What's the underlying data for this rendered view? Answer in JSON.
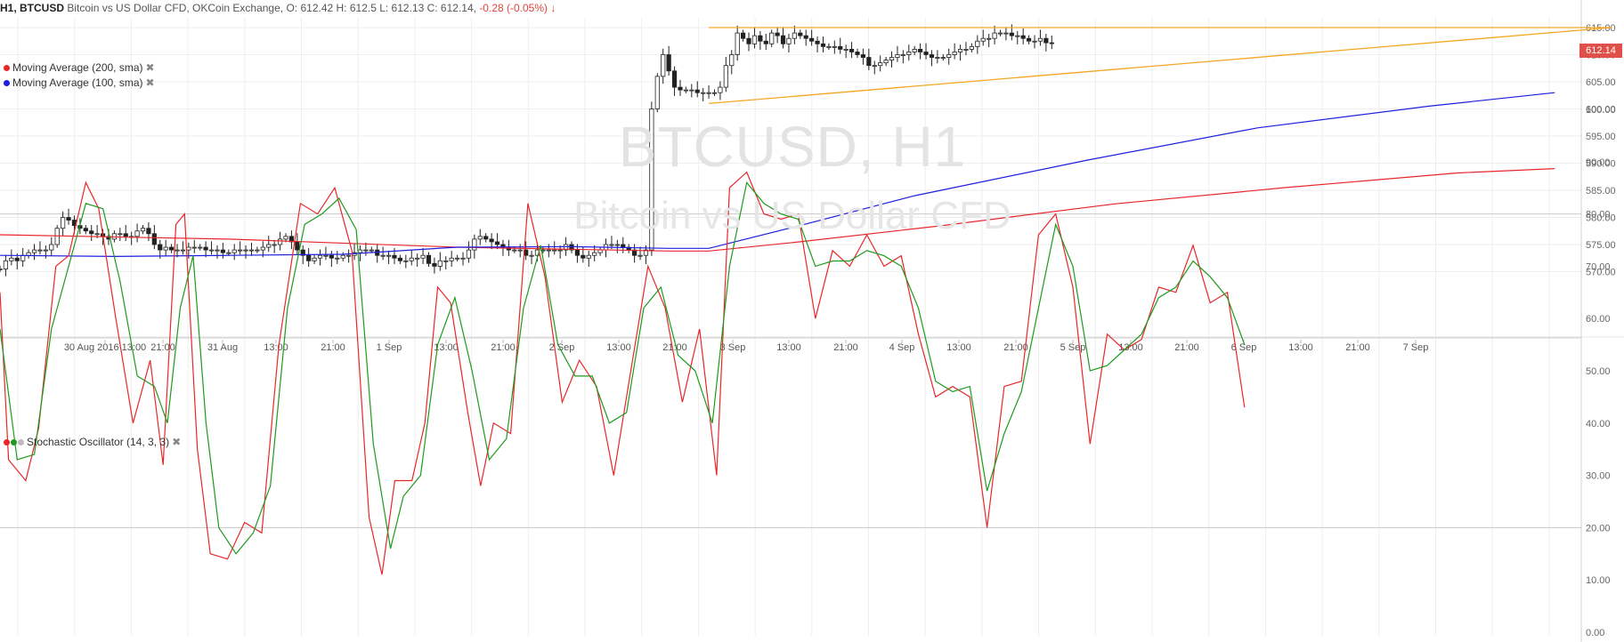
{
  "header": {
    "symbol": "H1, BTCUSD",
    "description": "Bitcoin vs US Dollar CFD, OKCoin Exchange,",
    "ohlc": "O: 612.42 H: 612.5 L: 612.13 C: 612.14,",
    "change": "-0.28 (-0.05%)",
    "change_arrow": "↓"
  },
  "watermark": {
    "line1": "BTCUSD, H1",
    "line2": "Bitcoin vs US Dollar CFD"
  },
  "price_tag": "612.14",
  "legend": {
    "ma200": {
      "label": "Moving Average (200, sma)",
      "color": "#e8272b",
      "close": "✖"
    },
    "ma100": {
      "label": "Moving Average (100, sma)",
      "color": "#1e1ee0",
      "close": "✖"
    },
    "stoch": {
      "label": "Stochastic Oscillator (14, 3, 3)",
      "close": "✖",
      "dot_colors": [
        "#e8272b",
        "#1e9a1e",
        "#bbbbbb"
      ]
    }
  },
  "chart_data": [
    {
      "type": "candlestick",
      "y_ticks": [
        "615.00",
        "610.00",
        "605.00",
        "600.00",
        "595.00",
        "590.00",
        "585.00",
        "580.00",
        "575.00",
        "570.00"
      ],
      "x_ticks": [
        "30 Aug 2016 13:00",
        "21:00",
        "31 Aug",
        "13:00",
        "21:00",
        "1 Sep",
        "13:00",
        "21:00",
        "2 Sep",
        "13:00",
        "21:00",
        "3 Sep",
        "13:00",
        "21:00",
        "4 Sep",
        "13:00",
        "21:00",
        "5 Sep",
        "13:00",
        "21:00",
        "6 Sep",
        "13:00",
        "21:00",
        "7 Sep"
      ],
      "ylim": [
        566,
        617
      ],
      "close_prices": [
        570.5,
        572,
        572.5,
        572,
        573,
        573.5,
        574,
        574,
        574,
        575,
        578,
        580,
        579.5,
        578.5,
        578,
        577.5,
        577,
        577,
        576.5,
        576,
        577,
        577,
        576.5,
        576.5,
        577.5,
        578,
        577,
        575,
        574,
        574.5,
        574,
        574,
        574,
        574.5,
        574.5,
        574.5,
        574,
        574,
        574,
        573.5,
        573.5,
        574,
        574,
        574,
        574,
        574,
        574.5,
        575,
        575,
        576,
        576.5,
        575.5,
        574,
        573,
        572,
        572.5,
        573,
        573,
        572.5,
        572.5,
        573,
        573,
        573.5,
        574,
        574,
        574,
        573,
        573,
        573,
        572.5,
        572,
        572,
        572.5,
        572.5,
        573,
        571.5,
        571,
        572,
        572,
        572.5,
        572.5,
        572.5,
        574,
        576,
        576.5,
        576,
        575.5,
        575,
        574.5,
        574,
        574,
        574,
        573,
        573,
        574,
        574,
        574,
        574,
        574,
        575,
        574,
        573,
        572.5,
        573,
        573.5,
        574,
        575,
        575,
        575,
        574.5,
        574,
        573,
        573,
        574,
        600,
        606,
        610,
        607,
        604,
        603.5,
        603.5,
        603.5,
        603,
        603,
        603,
        603,
        604,
        608,
        610,
        614,
        613,
        612,
        613.5,
        612.5,
        612,
        614,
        613.5,
        612,
        613,
        614,
        613.5,
        613,
        612.5,
        612,
        611.5,
        611.5,
        611.5,
        611,
        611,
        610.5,
        610,
        609.5,
        608,
        608,
        608.5,
        609,
        609.5,
        610,
        610,
        610.5,
        611,
        610.5,
        610,
        609.5,
        609.5,
        609.5,
        610,
        610.5,
        611,
        611,
        611.5,
        612.5,
        613,
        613,
        614,
        614,
        614,
        613.5,
        613.5,
        613,
        612.5,
        612.5,
        613,
        612.2,
        612.14
      ],
      "series": [
        {
          "name": "Moving Average (200, sma)",
          "color": "#e8272b",
          "points": [
            [
              0,
              576.8
            ],
            [
              40,
              576.0
            ],
            [
              80,
              574.5
            ],
            [
              117,
              573.8
            ],
            [
              124,
              573.8
            ],
            [
              140,
              575.5
            ],
            [
              165,
              578.5
            ],
            [
              195,
              582.5
            ],
            [
              225,
              585.5
            ],
            [
              255,
              588.2
            ],
            [
              272,
              589.0
            ]
          ]
        },
        {
          "name": "Moving Average (100, sma)",
          "color": "#1e1ee0",
          "points": [
            [
              0,
              573.0
            ],
            [
              20,
              572.8
            ],
            [
              40,
              573.0
            ],
            [
              60,
              573.2
            ],
            [
              80,
              574.5
            ],
            [
              100,
              574.6
            ],
            [
              117,
              574.3
            ],
            [
              124,
              574.3
            ],
            [
              140,
              578.5
            ],
            [
              160,
              584.0
            ],
            [
              190,
              590.5
            ],
            [
              220,
              596.5
            ],
            [
              250,
              600.5
            ],
            [
              272,
              603.0
            ]
          ]
        },
        {
          "name": "Resistance",
          "color": "#f5a623",
          "points": [
            [
              124,
              615.0
            ],
            [
              282,
              615.0
            ]
          ]
        },
        {
          "name": "Support",
          "color": "#f5a623",
          "points": [
            [
              124,
              601.0
            ],
            [
              282,
              615.0
            ]
          ]
        }
      ]
    },
    {
      "type": "line",
      "y_ticks": [
        "100.00",
        "90.00",
        "80.00",
        "70.00",
        "60.00",
        "50.00",
        "40.00",
        "30.00",
        "20.00",
        "10.00",
        "0.00"
      ],
      "ylim": [
        0,
        100
      ],
      "reference_lines": [
        80,
        20
      ],
      "series": [
        {
          "name": "%K",
          "color": "#e8272b",
          "points": [
            [
              0,
              65
            ],
            [
              2,
              33
            ],
            [
              6,
              29
            ],
            [
              9,
              39
            ],
            [
              13,
              70
            ],
            [
              16,
              72
            ],
            [
              20,
              86
            ],
            [
              23,
              81
            ],
            [
              27,
              60
            ],
            [
              31,
              40
            ],
            [
              35,
              52
            ],
            [
              38,
              32
            ],
            [
              41,
              78
            ],
            [
              43,
              80
            ],
            [
              46,
              35
            ],
            [
              49,
              15
            ],
            [
              53,
              14
            ],
            [
              57,
              21
            ],
            [
              61,
              19
            ],
            [
              65,
              55
            ],
            [
              70,
              82
            ],
            [
              74,
              80
            ],
            [
              78,
              85
            ],
            [
              82,
              73
            ],
            [
              86,
              22
            ],
            [
              89,
              11
            ],
            [
              92,
              29
            ],
            [
              96,
              29
            ],
            [
              99,
              40
            ],
            [
              102,
              66
            ],
            [
              105,
              63
            ],
            [
              109,
              42
            ],
            [
              112,
              28
            ],
            [
              115,
              40
            ],
            [
              119,
              38
            ],
            [
              123,
              82
            ],
            [
              127,
              68
            ],
            [
              131,
              44
            ],
            [
              135,
              52
            ],
            [
              139,
              47
            ],
            [
              143,
              30
            ],
            [
              147,
              50
            ],
            [
              151,
              70
            ],
            [
              155,
              62
            ],
            [
              159,
              44
            ],
            [
              163,
              58
            ],
            [
              167,
              30
            ],
            [
              170,
              85
            ],
            [
              174,
              88
            ],
            [
              178,
              80
            ],
            [
              182,
              79
            ],
            [
              186,
              80
            ],
            [
              190,
              60
            ],
            [
              194,
              73
            ],
            [
              198,
              70
            ],
            [
              202,
              76
            ],
            [
              206,
              70
            ],
            [
              210,
              72
            ],
            [
              214,
              57
            ],
            [
              218,
              45
            ],
            [
              222,
              47
            ],
            [
              226,
              45
            ],
            [
              230,
              20
            ],
            [
              234,
              47
            ],
            [
              238,
              48
            ],
            [
              242,
              76
            ],
            [
              246,
              80
            ],
            [
              250,
              66
            ],
            [
              254,
              36
            ],
            [
              258,
              57
            ],
            [
              262,
              54
            ],
            [
              266,
              56
            ],
            [
              270,
              66
            ],
            [
              274,
              65
            ],
            [
              278,
              74
            ],
            [
              282,
              63
            ],
            [
              286,
              65
            ],
            [
              290,
              43
            ]
          ]
        },
        {
          "name": "%D",
          "color": "#1e9a1e",
          "points": [
            [
              0,
              58
            ],
            [
              4,
              33
            ],
            [
              8,
              34
            ],
            [
              12,
              58
            ],
            [
              16,
              70
            ],
            [
              20,
              82
            ],
            [
              24,
              81
            ],
            [
              28,
              67
            ],
            [
              32,
              49
            ],
            [
              36,
              47
            ],
            [
              39,
              40
            ],
            [
              42,
              62
            ],
            [
              45,
              72
            ],
            [
              48,
              40
            ],
            [
              51,
              20
            ],
            [
              55,
              15
            ],
            [
              59,
              19
            ],
            [
              63,
              28
            ],
            [
              67,
              62
            ],
            [
              71,
              78
            ],
            [
              75,
              80
            ],
            [
              79,
              83
            ],
            [
              83,
              77
            ],
            [
              87,
              36
            ],
            [
              91,
              16
            ],
            [
              94,
              26
            ],
            [
              98,
              30
            ],
            [
              102,
              55
            ],
            [
              106,
              64
            ],
            [
              110,
              50
            ],
            [
              114,
              33
            ],
            [
              118,
              37
            ],
            [
              122,
              62
            ],
            [
              126,
              74
            ],
            [
              130,
              55
            ],
            [
              134,
              49
            ],
            [
              138,
              49
            ],
            [
              142,
              40
            ],
            [
              146,
              42
            ],
            [
              150,
              62
            ],
            [
              154,
              66
            ],
            [
              158,
              53
            ],
            [
              162,
              50
            ],
            [
              166,
              40
            ],
            [
              170,
              70
            ],
            [
              174,
              86
            ],
            [
              178,
              82
            ],
            [
              182,
              80
            ],
            [
              186,
              79
            ],
            [
              190,
              70
            ],
            [
              194,
              71
            ],
            [
              198,
              71
            ],
            [
              202,
              73
            ],
            [
              206,
              72
            ],
            [
              210,
              70
            ],
            [
              214,
              62
            ],
            [
              218,
              48
            ],
            [
              222,
              46
            ],
            [
              226,
              47
            ],
            [
              230,
              27
            ],
            [
              234,
              38
            ],
            [
              238,
              46
            ],
            [
              242,
              62
            ],
            [
              246,
              78
            ],
            [
              250,
              70
            ],
            [
              254,
              50
            ],
            [
              258,
              51
            ],
            [
              262,
              54
            ],
            [
              266,
              57
            ],
            [
              270,
              64
            ],
            [
              274,
              66
            ],
            [
              278,
              71
            ],
            [
              282,
              68
            ],
            [
              286,
              64
            ],
            [
              290,
              55
            ]
          ]
        }
      ]
    }
  ]
}
